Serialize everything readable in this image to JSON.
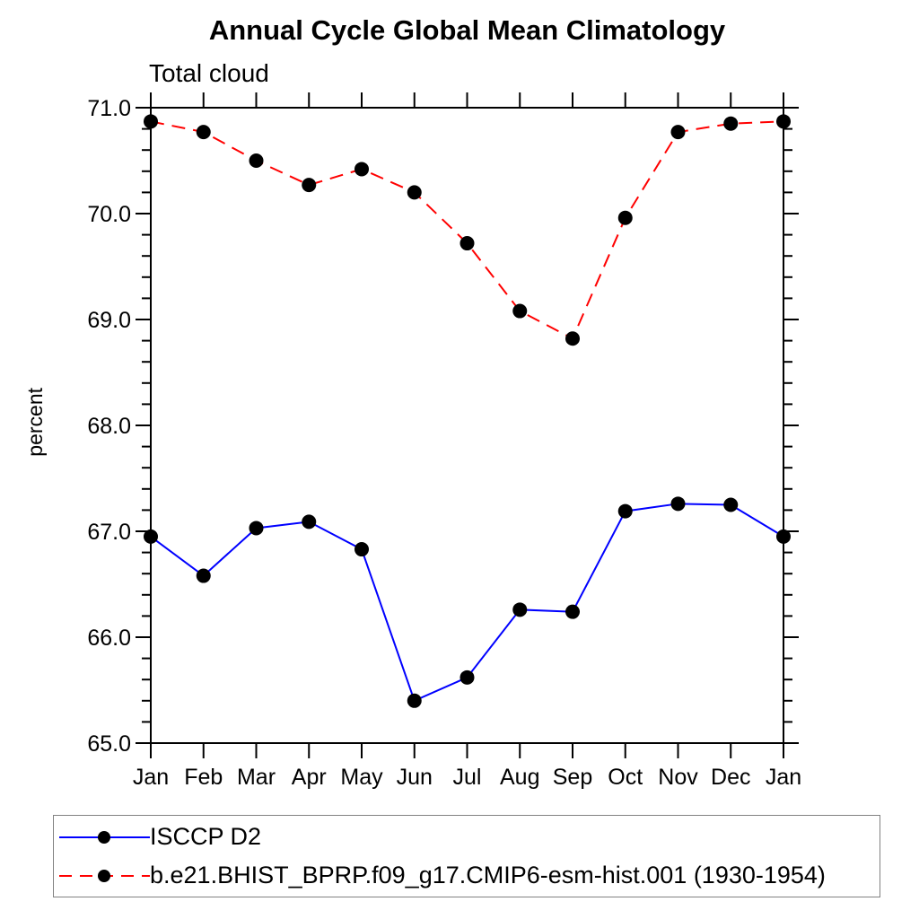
{
  "chart_data": {
    "type": "line",
    "title": "Annual Cycle Global Mean Climatology",
    "subtitle": "Total cloud",
    "ylabel": "percent",
    "categories": [
      "Jan",
      "Feb",
      "Mar",
      "Apr",
      "May",
      "Jun",
      "Jul",
      "Aug",
      "Sep",
      "Oct",
      "Nov",
      "Dec",
      "Jan"
    ],
    "ylim": [
      65.0,
      71.0
    ],
    "ytick_values": [
      65.0,
      66.0,
      67.0,
      68.0,
      69.0,
      70.0,
      71.0
    ],
    "ytick_labels": [
      "65.0",
      "66.0",
      "67.0",
      "68.0",
      "69.0",
      "70.0",
      "71.0"
    ],
    "yminor_step": 0.2,
    "grid": false,
    "legend_position": "bottom-left",
    "marker": {
      "shape": "circle",
      "color": "#000000",
      "radius": 8
    },
    "series": [
      {
        "name": "ISCCP D2",
        "color": "#0000ff",
        "line_style": "solid",
        "values": [
          66.95,
          66.58,
          67.03,
          67.09,
          66.83,
          65.4,
          65.62,
          66.26,
          66.24,
          67.19,
          67.26,
          67.25,
          66.95
        ]
      },
      {
        "name": "b.e21.BHIST_BPRP.f09_g17.CMIP6-esm-hist.001 (1930-1954)",
        "color": "#ff0000",
        "line_style": "dashed",
        "values": [
          70.87,
          70.77,
          70.5,
          70.27,
          70.42,
          70.2,
          69.72,
          69.08,
          68.82,
          69.96,
          70.77,
          70.85,
          70.87
        ]
      }
    ]
  }
}
